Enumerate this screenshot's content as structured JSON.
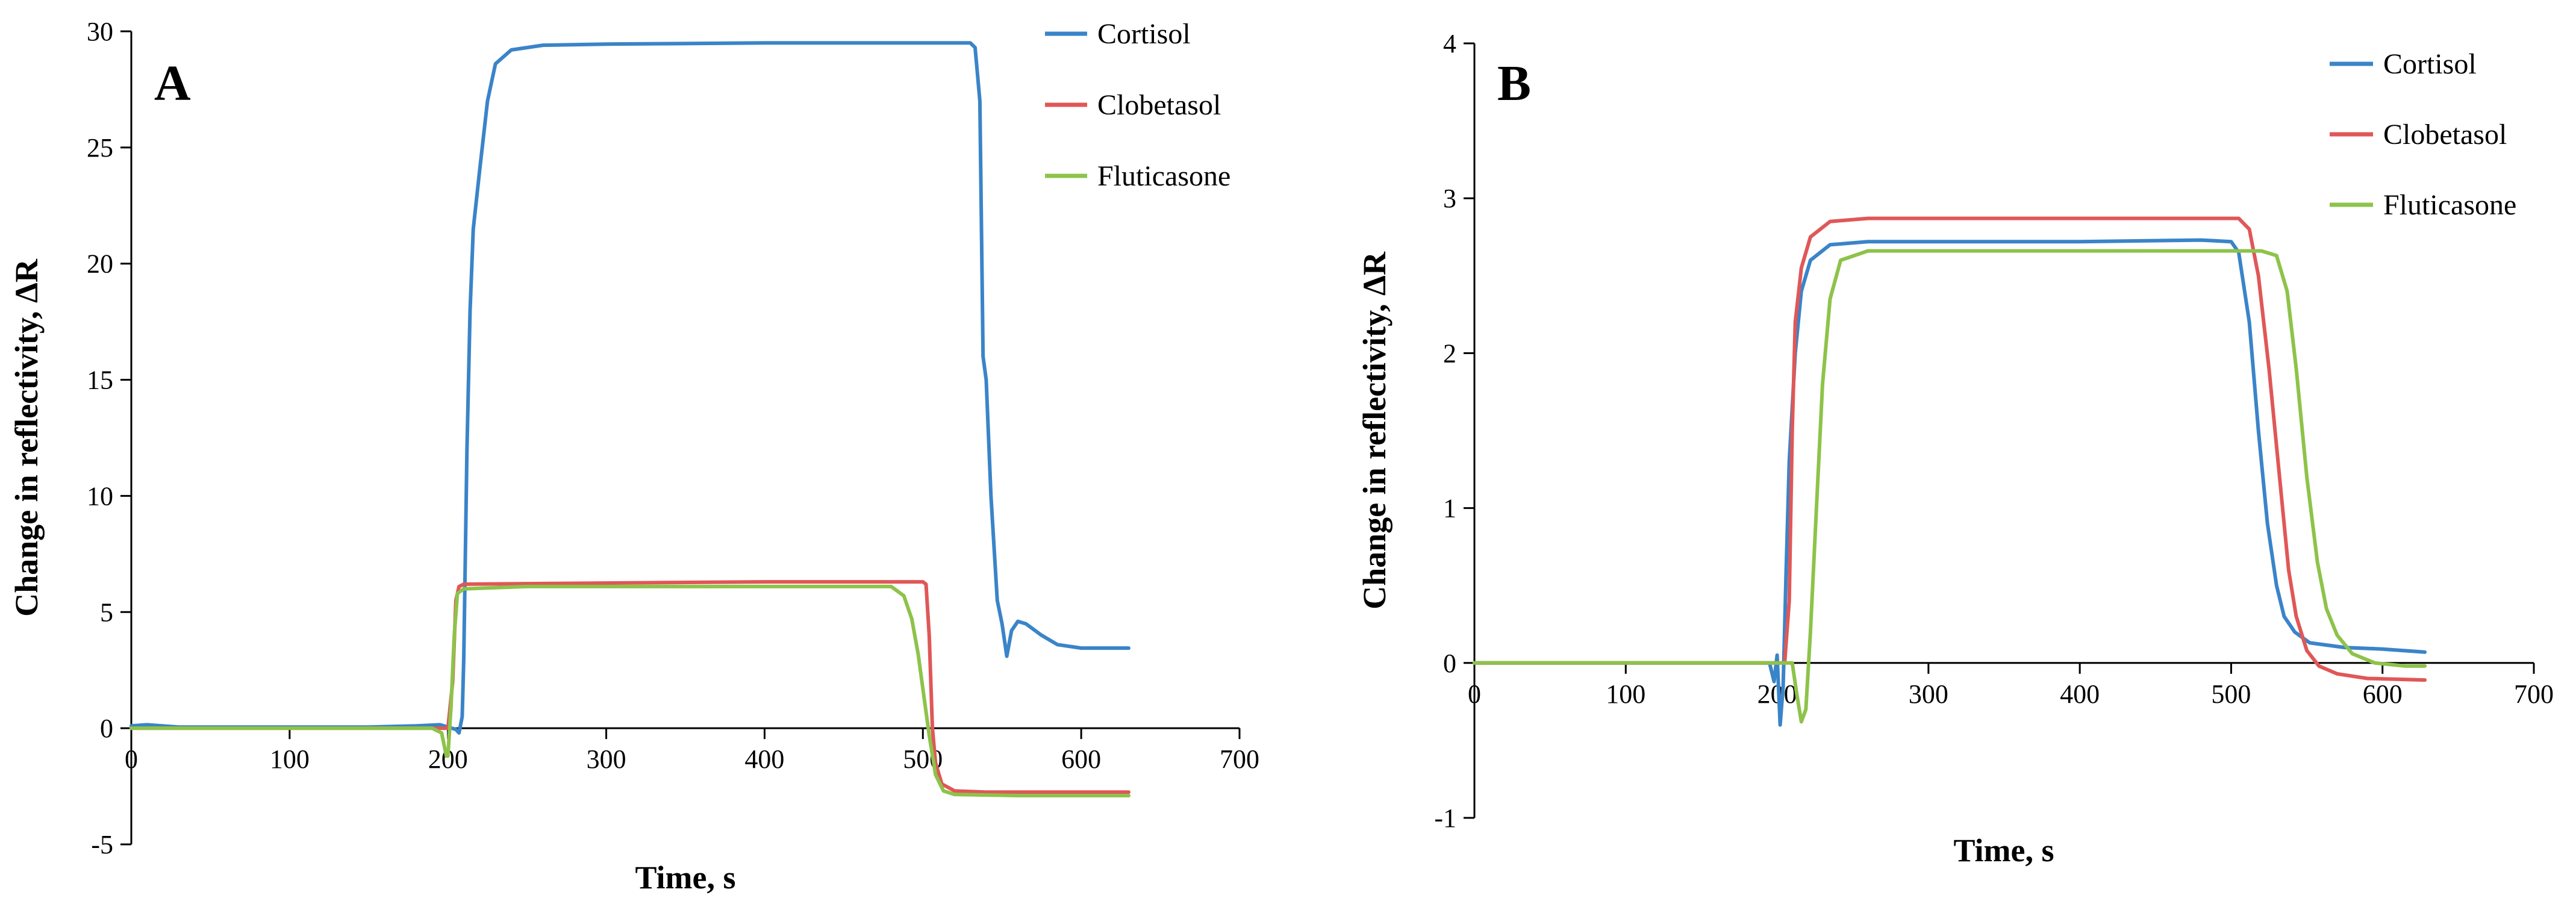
{
  "chart_data": [
    {
      "type": "line",
      "panel_label": "A",
      "xlabel": "Time, s",
      "ylabel": "Change in reflectivity, ΔR",
      "xlim": [
        0,
        700
      ],
      "ylim": [
        -5,
        30
      ],
      "xticks": [
        "0",
        "100",
        "200",
        "300",
        "400",
        "500",
        "600",
        "700"
      ],
      "yticks": [
        "-5",
        "0",
        "5",
        "10",
        "15",
        "20",
        "25",
        "30"
      ],
      "legend_position": "top-right",
      "series": [
        {
          "name": "Cortisol",
          "color": "#3a84c9",
          "points": [
            [
              0,
              0.1
            ],
            [
              10,
              0.15
            ],
            [
              30,
              0.05
            ],
            [
              100,
              0.05
            ],
            [
              150,
              0.05
            ],
            [
              180,
              0.1
            ],
            [
              195,
              0.15
            ],
            [
              200,
              0.05
            ],
            [
              205,
              -0.05
            ],
            [
              207,
              -0.2
            ],
            [
              209,
              0.5
            ],
            [
              210,
              3
            ],
            [
              212,
              12
            ],
            [
              214,
              18
            ],
            [
              216,
              21.5
            ],
            [
              220,
              24
            ],
            [
              225,
              27
            ],
            [
              230,
              28.6
            ],
            [
              240,
              29.2
            ],
            [
              260,
              29.4
            ],
            [
              300,
              29.45
            ],
            [
              400,
              29.5
            ],
            [
              500,
              29.5
            ],
            [
              530,
              29.5
            ],
            [
              533,
              29.3
            ],
            [
              536,
              27
            ],
            [
              538,
              16
            ],
            [
              540,
              15
            ],
            [
              543,
              10
            ],
            [
              547,
              5.5
            ],
            [
              550,
              4.5
            ],
            [
              553,
              3.1
            ],
            [
              556,
              4.2
            ],
            [
              560,
              4.6
            ],
            [
              565,
              4.5
            ],
            [
              575,
              4.0
            ],
            [
              585,
              3.6
            ],
            [
              600,
              3.45
            ],
            [
              630,
              3.45
            ]
          ]
        },
        {
          "name": "Clobetasol",
          "color": "#e05757",
          "points": [
            [
              0,
              0
            ],
            [
              100,
              0
            ],
            [
              195,
              0
            ],
            [
              200,
              0
            ],
            [
              203,
              2
            ],
            [
              205,
              5.5
            ],
            [
              207,
              6.1
            ],
            [
              210,
              6.2
            ],
            [
              300,
              6.25
            ],
            [
              400,
              6.3
            ],
            [
              490,
              6.3
            ],
            [
              500,
              6.3
            ],
            [
              502,
              6.2
            ],
            [
              504,
              4
            ],
            [
              506,
              0
            ],
            [
              508,
              -1.5
            ],
            [
              512,
              -2.4
            ],
            [
              520,
              -2.7
            ],
            [
              540,
              -2.75
            ],
            [
              630,
              -2.75
            ]
          ]
        },
        {
          "name": "Fluticasone",
          "color": "#8dc34a",
          "points": [
            [
              0,
              0
            ],
            [
              100,
              0
            ],
            [
              190,
              0
            ],
            [
              196,
              -0.2
            ],
            [
              199,
              -1.2
            ],
            [
              200,
              -1.2
            ],
            [
              202,
              1
            ],
            [
              204,
              4
            ],
            [
              206,
              5.8
            ],
            [
              210,
              6.0
            ],
            [
              250,
              6.1
            ],
            [
              300,
              6.1
            ],
            [
              400,
              6.1
            ],
            [
              480,
              6.1
            ],
            [
              488,
              5.7
            ],
            [
              493,
              4.7
            ],
            [
              497,
              3.2
            ],
            [
              501,
              1.2
            ],
            [
              504,
              -0.3
            ],
            [
              508,
              -2
            ],
            [
              513,
              -2.7
            ],
            [
              520,
              -2.85
            ],
            [
              560,
              -2.9
            ],
            [
              630,
              -2.9
            ]
          ]
        }
      ]
    },
    {
      "type": "line",
      "panel_label": "B",
      "xlabel": "Time, s",
      "ylabel": "Change in reflectivity, ΔR",
      "xlim": [
        0,
        700
      ],
      "ylim": [
        -1,
        4
      ],
      "xticks": [
        "0",
        "100",
        "200",
        "300",
        "400",
        "500",
        "600",
        "700"
      ],
      "yticks": [
        "-1",
        "0",
        "1",
        "2",
        "3",
        "4"
      ],
      "legend_position": "top-right",
      "series": [
        {
          "name": "Cortisol",
          "color": "#3a84c9",
          "points": [
            [
              0,
              0
            ],
            [
              100,
              0
            ],
            [
              180,
              0
            ],
            [
              195,
              0
            ],
            [
              198,
              -0.12
            ],
            [
              200,
              0.05
            ],
            [
              202,
              -0.4
            ],
            [
              204,
              -0.15
            ],
            [
              206,
              0.6
            ],
            [
              208,
              1.3
            ],
            [
              212,
              2.0
            ],
            [
              216,
              2.4
            ],
            [
              222,
              2.6
            ],
            [
              235,
              2.7
            ],
            [
              260,
              2.72
            ],
            [
              400,
              2.72
            ],
            [
              480,
              2.73
            ],
            [
              500,
              2.72
            ],
            [
              505,
              2.65
            ],
            [
              512,
              2.2
            ],
            [
              518,
              1.5
            ],
            [
              524,
              0.9
            ],
            [
              530,
              0.5
            ],
            [
              535,
              0.3
            ],
            [
              542,
              0.2
            ],
            [
              552,
              0.13
            ],
            [
              575,
              0.1
            ],
            [
              600,
              0.09
            ],
            [
              628,
              0.07
            ]
          ]
        },
        {
          "name": "Clobetasol",
          "color": "#e05757",
          "points": [
            [
              0,
              0
            ],
            [
              100,
              0
            ],
            [
              200,
              0
            ],
            [
              205,
              0
            ],
            [
              208,
              0.4
            ],
            [
              210,
              1.5
            ],
            [
              212,
              2.2
            ],
            [
              216,
              2.55
            ],
            [
              222,
              2.75
            ],
            [
              235,
              2.85
            ],
            [
              260,
              2.87
            ],
            [
              400,
              2.87
            ],
            [
              505,
              2.87
            ],
            [
              512,
              2.8
            ],
            [
              518,
              2.5
            ],
            [
              525,
              1.9
            ],
            [
              532,
              1.2
            ],
            [
              538,
              0.6
            ],
            [
              543,
              0.3
            ],
            [
              550,
              0.08
            ],
            [
              558,
              -0.02
            ],
            [
              570,
              -0.07
            ],
            [
              590,
              -0.1
            ],
            [
              628,
              -0.11
            ]
          ]
        },
        {
          "name": "Fluticasone",
          "color": "#8dc34a",
          "points": [
            [
              0,
              0
            ],
            [
              100,
              0
            ],
            [
              200,
              0
            ],
            [
              210,
              0
            ],
            [
              213,
              -0.2
            ],
            [
              216,
              -0.38
            ],
            [
              219,
              -0.3
            ],
            [
              222,
              0.2
            ],
            [
              226,
              1.0
            ],
            [
              230,
              1.8
            ],
            [
              235,
              2.35
            ],
            [
              242,
              2.6
            ],
            [
              260,
              2.66
            ],
            [
              400,
              2.66
            ],
            [
              520,
              2.66
            ],
            [
              530,
              2.63
            ],
            [
              537,
              2.4
            ],
            [
              543,
              1.9
            ],
            [
              550,
              1.2
            ],
            [
              557,
              0.65
            ],
            [
              563,
              0.35
            ],
            [
              570,
              0.18
            ],
            [
              580,
              0.06
            ],
            [
              595,
              0.0
            ],
            [
              615,
              -0.02
            ],
            [
              628,
              -0.02
            ]
          ]
        }
      ]
    }
  ]
}
